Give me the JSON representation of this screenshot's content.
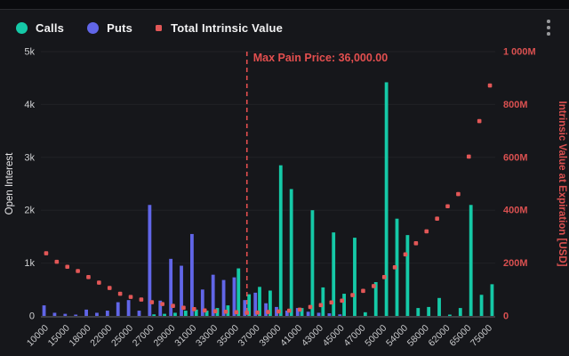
{
  "legend": [
    {
      "label": "Calls",
      "color": "#15c9a7",
      "shape": "circle"
    },
    {
      "label": "Puts",
      "color": "#6166e8",
      "shape": "circle"
    },
    {
      "label": "Total Intrinsic Value",
      "color": "#e25757",
      "shape": "square"
    }
  ],
  "colors": {
    "background": "#16171b",
    "calls": "#15c9a7",
    "puts": "#6166e8",
    "intrinsic": "#e25757",
    "max_pain": "#e34f4f",
    "grid": "#212226",
    "axis_line": "#3f4044",
    "tick_text": "#cfd0d2",
    "x_tick_text": "#c9cacc",
    "left_title": "#e6e6e8",
    "right_axis_text": "#d95050"
  },
  "chart_data": {
    "type": "bar",
    "note": "grouped bars (calls/puts, left axis, OI contracts) + scatter (total intrinsic value, right axis, $M)",
    "max_pain": {
      "label": "Max Pain Price: 36,000.00",
      "value": 36000
    },
    "y_left": {
      "title": "Open Interest",
      "ticks": [
        "0",
        "1k",
        "2k",
        "3k",
        "4k",
        "5k"
      ],
      "min": 0,
      "max": 5000,
      "grid": true
    },
    "y_right": {
      "title": "Intrinsic Value at Expiration [USD]",
      "ticks": [
        "0",
        "200M",
        "400M",
        "600M",
        "800M",
        "1 000M"
      ],
      "min": 0,
      "max": 1000
    },
    "x_label_every": 2,
    "categories": [
      "10000",
      "12000",
      "15000",
      "16000",
      "18000",
      "20000",
      "22000",
      "24000",
      "25000",
      "26000",
      "27000",
      "28000",
      "29000",
      "30000",
      "31000",
      "32000",
      "33000",
      "34000",
      "35000",
      "36000",
      "37000",
      "38000",
      "39000",
      "40000",
      "41000",
      "42000",
      "43000",
      "44000",
      "45000",
      "46000",
      "47000",
      "48000",
      "50000",
      "52000",
      "54000",
      "56000",
      "58000",
      "60000",
      "62000",
      "64000",
      "65000",
      "70000",
      "75000"
    ],
    "series": [
      {
        "name": "Calls",
        "axis": "left",
        "values": [
          0,
          0,
          0,
          0,
          0,
          0,
          0,
          0,
          0,
          0,
          30,
          40,
          60,
          100,
          120,
          100,
          150,
          200,
          900,
          410,
          550,
          480,
          2850,
          2400,
          150,
          2000,
          540,
          1580,
          420,
          1480,
          70,
          640,
          4420,
          1840,
          1530,
          150,
          170,
          340,
          20,
          150,
          2100,
          400,
          600
        ]
      },
      {
        "name": "Puts",
        "axis": "left",
        "values": [
          200,
          60,
          40,
          20,
          120,
          60,
          100,
          260,
          300,
          100,
          2100,
          290,
          1080,
          950,
          1550,
          500,
          780,
          680,
          730,
          300,
          440,
          240,
          170,
          100,
          150,
          80,
          60,
          50,
          30,
          0,
          0,
          0,
          0,
          0,
          0,
          0,
          0,
          0,
          0,
          0,
          0,
          0,
          0
        ]
      },
      {
        "name": "Total Intrinsic Value",
        "axis": "right",
        "values": [
          237,
          205,
          186,
          170,
          147,
          126,
          106,
          84,
          72,
          62,
          52,
          45,
          38,
          31,
          26,
          21,
          18,
          16,
          14,
          12,
          13,
          15,
          17,
          20,
          24,
          34,
          41,
          51,
          58,
          79,
          95,
          113,
          147,
          184,
          233,
          275,
          320,
          368,
          415,
          461,
          603,
          737,
          872
        ]
      }
    ]
  }
}
